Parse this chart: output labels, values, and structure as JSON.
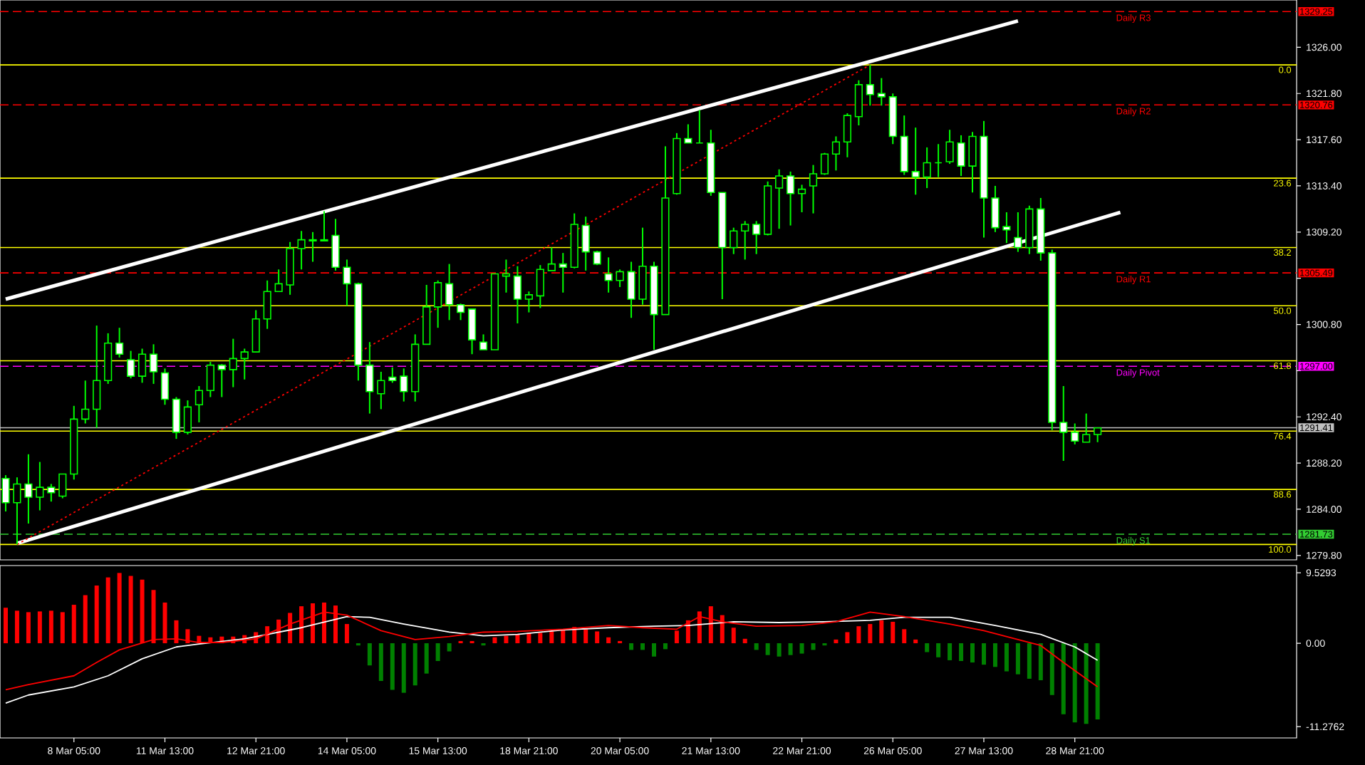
{
  "chart_data": [
    {
      "type": "candlestick",
      "color": "#00ff00",
      "categories": [
        null,
        null,
        null,
        null,
        null,
        null,
        null,
        null,
        null,
        null,
        null,
        null,
        null,
        null,
        null,
        null,
        null,
        null,
        null,
        null,
        null,
        null,
        null,
        null,
        null,
        null,
        null,
        null,
        null,
        null,
        null,
        null,
        null,
        null,
        null,
        null,
        null,
        null,
        null,
        null,
        null,
        null,
        null,
        null,
        null,
        null,
        null,
        null,
        null,
        null,
        null,
        null,
        null,
        null,
        null,
        null,
        null,
        null,
        null,
        null,
        null,
        null,
        null,
        null,
        null,
        null,
        null,
        null,
        null,
        null,
        null,
        null,
        null,
        null,
        null,
        null,
        null,
        null,
        null,
        null,
        null,
        null,
        null,
        null,
        null,
        null,
        null,
        null,
        null,
        null,
        null,
        null,
        null,
        null,
        null,
        null,
        null,
        null,
        null,
        null,
        null,
        null,
        null,
        null,
        null,
        null,
        null,
        null,
        null,
        null,
        null,
        null,
        null,
        null
      ],
      "ohlc": [
        [
          1286.8,
          1287.1,
          1283.8,
          1284.6
        ],
        [
          1284.6,
          1286.9,
          1280.8,
          1286.3
        ],
        [
          1286.3,
          1289.0,
          1282.7,
          1285.1
        ],
        [
          1285.1,
          1288.3,
          1283.9,
          1286.0
        ],
        [
          1286.0,
          1286.3,
          1284.7,
          1285.5
        ],
        [
          1285.2,
          1287.2,
          1285.0,
          1287.2
        ],
        [
          1287.2,
          1293.4,
          1286.7,
          1292.2
        ],
        [
          1292.2,
          1295.7,
          1291.8,
          1293.1
        ],
        [
          1293.1,
          1300.7,
          1291.4,
          1295.7
        ],
        [
          1295.7,
          1300.0,
          1295.4,
          1299.1
        ],
        [
          1299.1,
          1300.5,
          1297.8,
          1298.1
        ],
        [
          1297.6,
          1298.4,
          1295.9,
          1296.1
        ],
        [
          1296.1,
          1298.6,
          1295.5,
          1298.1
        ],
        [
          1298.1,
          1299.0,
          1295.4,
          1296.5
        ],
        [
          1296.4,
          1296.8,
          1293.5,
          1294.0
        ],
        [
          1294.0,
          1294.2,
          1290.4,
          1291.0
        ],
        [
          1291.0,
          1293.9,
          1290.8,
          1293.3
        ],
        [
          1293.5,
          1295.2,
          1291.9,
          1294.8
        ],
        [
          1294.8,
          1297.4,
          1294.2,
          1297.1
        ],
        [
          1297.1,
          1297.2,
          1294.2,
          1296.7
        ],
        [
          1296.7,
          1299.5,
          1295.1,
          1297.7
        ],
        [
          1297.7,
          1298.6,
          1295.8,
          1298.3
        ],
        [
          1298.3,
          1302.1,
          1298.3,
          1301.3
        ],
        [
          1301.3,
          1304.8,
          1300.4,
          1303.8
        ],
        [
          1303.8,
          1305.8,
          1303.8,
          1304.5
        ],
        [
          1304.4,
          1308.3,
          1303.5,
          1307.7
        ],
        [
          1307.7,
          1309.3,
          1305.8,
          1308.5
        ],
        [
          1308.4,
          1309.2,
          1306.5,
          1308.5
        ],
        [
          1308.4,
          1311.1,
          1308.4,
          1308.5
        ],
        [
          1308.9,
          1310.4,
          1305.7,
          1306.0
        ],
        [
          1306.0,
          1306.7,
          1302.5,
          1304.5
        ],
        [
          1304.5,
          1304.6,
          1295.7,
          1297.1
        ],
        [
          1297.1,
          1299.2,
          1292.7,
          1294.7
        ],
        [
          1294.5,
          1296.5,
          1293.1,
          1295.7
        ],
        [
          1296.0,
          1296.9,
          1295.5,
          1295.7
        ],
        [
          1296.1,
          1296.8,
          1293.8,
          1294.7
        ],
        [
          1294.7,
          1299.9,
          1293.8,
          1299.0
        ],
        [
          1299.0,
          1304.4,
          1299.0,
          1302.4
        ],
        [
          1302.4,
          1304.8,
          1300.5,
          1304.6
        ],
        [
          1304.5,
          1306.3,
          1301.2,
          1302.6
        ],
        [
          1302.6,
          1302.7,
          1301.2,
          1301.9
        ],
        [
          1302.2,
          1302.2,
          1298.1,
          1299.4
        ],
        [
          1299.2,
          1299.9,
          1298.5,
          1298.5
        ],
        [
          1298.5,
          1305.4,
          1298.5,
          1305.4
        ],
        [
          1305.2,
          1306.7,
          1303.7,
          1305.4
        ],
        [
          1305.2,
          1306.1,
          1300.9,
          1303.1
        ],
        [
          1303.1,
          1303.8,
          1301.9,
          1303.5
        ],
        [
          1303.4,
          1306.2,
          1302.3,
          1305.8
        ],
        [
          1305.7,
          1307.8,
          1305.7,
          1306.3
        ],
        [
          1306.3,
          1307.3,
          1303.7,
          1306.0
        ],
        [
          1306.0,
          1310.9,
          1305.9,
          1309.9
        ],
        [
          1309.8,
          1310.6,
          1305.7,
          1307.4
        ],
        [
          1307.4,
          1307.5,
          1306.2,
          1306.3
        ],
        [
          1305.4,
          1306.9,
          1303.7,
          1304.8
        ],
        [
          1304.8,
          1305.8,
          1304.2,
          1305.6
        ],
        [
          1305.6,
          1306.5,
          1301.4,
          1303.1
        ],
        [
          1303.1,
          1309.6,
          1302.6,
          1306.1
        ],
        [
          1306.1,
          1306.5,
          1298.5,
          1301.7
        ],
        [
          1301.7,
          1317.0,
          1301.7,
          1312.3
        ],
        [
          1312.7,
          1318.2,
          1312.6,
          1317.7
        ],
        [
          1317.7,
          1319.0,
          1317.3,
          1317.3
        ],
        [
          1317.3,
          1320.3,
          1317.3,
          1317.3
        ],
        [
          1317.3,
          1318.5,
          1312.5,
          1312.8
        ],
        [
          1312.8,
          1312.8,
          1303.1,
          1307.8
        ],
        [
          1307.8,
          1309.6,
          1307.2,
          1309.3
        ],
        [
          1309.3,
          1310.2,
          1306.7,
          1309.9
        ],
        [
          1309.9,
          1310.2,
          1307.2,
          1309.0
        ],
        [
          1309.0,
          1313.8,
          1308.9,
          1313.4
        ],
        [
          1313.2,
          1314.9,
          1309.5,
          1314.3
        ],
        [
          1314.3,
          1314.7,
          1309.8,
          1312.7
        ],
        [
          1312.7,
          1313.5,
          1311.0,
          1313.1
        ],
        [
          1313.4,
          1315.3,
          1310.9,
          1314.5
        ],
        [
          1314.5,
          1316.4,
          1314.4,
          1316.3
        ],
        [
          1316.3,
          1317.9,
          1314.8,
          1317.4
        ],
        [
          1317.4,
          1320.0,
          1316.0,
          1319.8
        ],
        [
          1319.7,
          1323.0,
          1318.9,
          1322.6
        ],
        [
          1322.6,
          1324.4,
          1320.7,
          1321.7
        ],
        [
          1321.8,
          1323.2,
          1320.7,
          1321.5
        ],
        [
          1321.5,
          1321.8,
          1317.2,
          1317.9
        ],
        [
          1317.9,
          1319.8,
          1314.4,
          1314.7
        ],
        [
          1314.7,
          1318.7,
          1312.6,
          1314.2
        ],
        [
          1314.2,
          1316.9,
          1313.2,
          1315.5
        ],
        [
          1315.5,
          1317.2,
          1314.2,
          1315.5
        ],
        [
          1315.6,
          1318.5,
          1315.4,
          1317.4
        ],
        [
          1317.3,
          1318.0,
          1314.3,
          1315.2
        ],
        [
          1315.2,
          1318.3,
          1312.8,
          1317.9
        ],
        [
          1317.9,
          1319.3,
          1308.7,
          1312.3
        ],
        [
          1312.3,
          1313.4,
          1309.2,
          1309.6
        ],
        [
          1309.7,
          1311.0,
          1308.2,
          1309.4
        ],
        [
          1308.7,
          1311.0,
          1307.4,
          1307.8
        ],
        [
          1307.8,
          1311.6,
          1307.2,
          1311.3
        ],
        [
          1311.3,
          1312.3,
          1306.6,
          1307.3
        ],
        [
          1307.3,
          1307.6,
          1291.2,
          1291.9
        ],
        [
          1291.9,
          1295.2,
          1288.4,
          1291.0
        ],
        [
          1291.0,
          1291.8,
          1289.9,
          1290.2
        ],
        [
          1290.1,
          1292.7,
          1290.1,
          1290.8
        ],
        [
          1290.8,
          1291.4,
          1290.1,
          1291.4
        ],
        null,
        null,
        null,
        null,
        null,
        null,
        null,
        null,
        null,
        null,
        null,
        null,
        null,
        null,
        null,
        null,
        null
      ],
      "series": [
        {
          "type": "line",
          "color": "#ffffff",
          "line_style": "solid",
          "values": [
            1303.1,
            null,
            null,
            null,
            null,
            null,
            null,
            null,
            null,
            null,
            null,
            null,
            null,
            null,
            null,
            null,
            null,
            null,
            null,
            null,
            null,
            null,
            null,
            null,
            null,
            null,
            null,
            null,
            null,
            null,
            null,
            null,
            null,
            null,
            null,
            null,
            null,
            null,
            null,
            null,
            null,
            null,
            null,
            null,
            null,
            null,
            null,
            null,
            null,
            null,
            null,
            null,
            null,
            null,
            null,
            null,
            null,
            null,
            null,
            null,
            null,
            null,
            null,
            null,
            null,
            null,
            null,
            null,
            null,
            null,
            null,
            null,
            null,
            null,
            null,
            null,
            null,
            null,
            null,
            null,
            null,
            null,
            null,
            null,
            null,
            null,
            null,
            null,
            null,
            1328.4,
            null,
            null,
            null,
            null,
            null,
            null,
            null,
            null,
            null,
            null,
            null,
            null,
            null,
            null,
            null,
            null,
            null,
            null,
            null,
            null,
            null,
            null,
            null,
            null
          ]
        },
        {
          "type": "line",
          "color": "#ffffff",
          "line_style": "solid",
          "values": [
            null,
            1280.9,
            null,
            null,
            null,
            null,
            null,
            null,
            null,
            null,
            null,
            null,
            null,
            null,
            null,
            null,
            null,
            null,
            null,
            null,
            null,
            null,
            null,
            null,
            null,
            null,
            null,
            null,
            null,
            null,
            null,
            null,
            null,
            null,
            null,
            null,
            null,
            null,
            null,
            null,
            null,
            null,
            null,
            null,
            null,
            null,
            null,
            null,
            null,
            null,
            null,
            null,
            null,
            null,
            null,
            null,
            null,
            null,
            null,
            null,
            null,
            null,
            null,
            null,
            null,
            null,
            null,
            null,
            null,
            null,
            null,
            null,
            null,
            null,
            null,
            null,
            null,
            null,
            null,
            null,
            null,
            null,
            null,
            null,
            null,
            null,
            null,
            null,
            null,
            null,
            null,
            null,
            null,
            null,
            null,
            null,
            null,
            null,
            1311.0,
            null,
            null,
            null,
            null,
            null,
            null,
            null,
            null,
            null,
            null,
            null,
            null,
            null,
            null,
            null
          ]
        },
        {
          "type": "line",
          "color": "#ff0000",
          "line_style": "dotted",
          "values": [
            null,
            1280.8,
            null,
            null,
            null,
            null,
            null,
            null,
            null,
            null,
            null,
            null,
            null,
            null,
            null,
            null,
            null,
            null,
            null,
            null,
            null,
            null,
            null,
            null,
            null,
            null,
            null,
            null,
            null,
            null,
            null,
            null,
            null,
            null,
            null,
            null,
            null,
            null,
            null,
            null,
            null,
            null,
            null,
            null,
            null,
            null,
            null,
            null,
            null,
            null,
            null,
            null,
            null,
            null,
            null,
            null,
            null,
            null,
            null,
            null,
            null,
            null,
            null,
            null,
            null,
            null,
            null,
            null,
            null,
            null,
            null,
            null,
            null,
            null,
            null,
            null,
            1324.4,
            null,
            null,
            null,
            null,
            null,
            null,
            null,
            null,
            null,
            null,
            null,
            null,
            null,
            null,
            null,
            null,
            null,
            null,
            null,
            null,
            null,
            null,
            null,
            null,
            null,
            null,
            null,
            null,
            null,
            null,
            null,
            null,
            null,
            null,
            null,
            null,
            null
          ]
        }
      ],
      "ylim": [
        1279.4,
        1330.3
      ],
      "yticks": [
        {
          "value": 1326.0,
          "label": "1326.00"
        },
        {
          "value": 1321.8,
          "label": "1321.80"
        },
        {
          "value": 1317.6,
          "label": "1317.60"
        },
        {
          "value": 1313.4,
          "label": "1313.40"
        },
        {
          "value": 1309.2,
          "label": "1309.20"
        },
        {
          "value": 1305.0,
          "label": null
        },
        {
          "value": 1300.8,
          "label": "1300.80"
        },
        {
          "value": 1296.6,
          "label": null
        },
        {
          "value": 1292.4,
          "label": "1292.40"
        },
        {
          "value": 1288.2,
          "label": "1288.20"
        },
        {
          "value": 1284.0,
          "label": "1284.00"
        },
        {
          "value": 1279.8,
          "label": "1279.80"
        }
      ],
      "tick_labels": "y",
      "ref_lines": [
        {
          "axis": "y",
          "value": 1324.4,
          "color": "#ffff00",
          "line_style": "solid"
        },
        {
          "axis": "y",
          "value": 1314.1,
          "color": "#ffff00",
          "line_style": "solid"
        },
        {
          "axis": "y",
          "value": 1307.8,
          "color": "#ffff00",
          "line_style": "solid"
        },
        {
          "axis": "y",
          "value": 1302.5,
          "color": "#ffff00",
          "line_style": "solid"
        },
        {
          "axis": "y",
          "value": 1297.5,
          "color": "#ffff00",
          "line_style": "solid"
        },
        {
          "axis": "y",
          "value": 1291.1,
          "color": "#ffff00",
          "line_style": "solid"
        },
        {
          "axis": "y",
          "value": 1285.8,
          "color": "#ffff00",
          "line_style": "solid"
        },
        {
          "axis": "y",
          "value": 1280.8,
          "color": "#ffff00",
          "line_style": "solid"
        },
        {
          "axis": "y",
          "value": 1329.25,
          "label": "1329.25",
          "color": "#ff0000",
          "line_style": "dashed"
        },
        {
          "axis": "y",
          "value": 1320.76,
          "label": "1320.76",
          "color": "#ff0000",
          "line_style": "dashed"
        },
        {
          "axis": "y",
          "value": 1305.49,
          "label": "1305.49",
          "color": "#ff0000",
          "line_style": "dashed"
        },
        {
          "axis": "y",
          "value": 1297.0,
          "label": "1297.00",
          "color": "#ff00ff",
          "line_style": "dashed"
        },
        {
          "axis": "y",
          "value": 1281.73,
          "label": "1281.73",
          "color": "#32cd32",
          "line_style": "dashed"
        },
        {
          "axis": "y",
          "value": 1291.41,
          "label": "1291.41",
          "color": "#c0c0c0",
          "line_style": "solid"
        }
      ],
      "annotations": [
        "0.0",
        "23.6",
        "38.2",
        "50.0",
        "61.8",
        "76.4",
        "88.6",
        "100.0",
        "Daily R3",
        "Daily R2",
        "Daily R1",
        "Daily Pivot",
        "Daily S1"
      ]
    },
    {
      "type": "bar",
      "categories": [
        null,
        null,
        null,
        null,
        null,
        null,
        "8 Mar 05:00",
        null,
        null,
        null,
        null,
        null,
        null,
        null,
        "11 Mar 13:00",
        null,
        null,
        null,
        null,
        null,
        null,
        null,
        "12 Mar 21:00",
        null,
        null,
        null,
        null,
        null,
        null,
        null,
        "14 Mar 05:00",
        null,
        null,
        null,
        null,
        null,
        null,
        null,
        "15 Mar 13:00",
        null,
        null,
        null,
        null,
        null,
        null,
        null,
        "18 Mar 21:00",
        null,
        null,
        null,
        null,
        null,
        null,
        null,
        "20 Mar 05:00",
        null,
        null,
        null,
        null,
        null,
        null,
        null,
        "21 Mar 13:00",
        null,
        null,
        null,
        null,
        null,
        null,
        null,
        "22 Mar 21:00",
        null,
        null,
        null,
        null,
        null,
        null,
        null,
        "26 Mar 05:00",
        null,
        null,
        null,
        null,
        null,
        null,
        null,
        "27 Mar 13:00",
        null,
        null,
        null,
        null,
        null,
        null,
        null,
        "28 Mar 21:00",
        null,
        null,
        null,
        null,
        null,
        null,
        null,
        null,
        null,
        null,
        null,
        null,
        null,
        null,
        null,
        null,
        null,
        null,
        null
      ],
      "series": [
        {
          "type": "bar",
          "values": [
            4.8,
            4.4,
            4.2,
            4.3,
            4.4,
            4.2,
            5.2,
            6.5,
            7.8,
            8.9,
            9.5,
            9.1,
            8.6,
            7.2,
            5.5,
            3.1,
            1.9,
            1.0,
            0.8,
            0.9,
            0.9,
            1.1,
            1.5,
            2.3,
            3.2,
            4.1,
            5.0,
            5.4,
            5.5,
            5.1,
            2.6,
            -0.3,
            -3.0,
            -5.1,
            -6.3,
            -6.7,
            -5.7,
            -4.1,
            -2.4,
            -1.1,
            0.3,
            0.3,
            -0.3,
            0.8,
            1.0,
            1.2,
            1.4,
            1.4,
            1.6,
            1.8,
            2.2,
            1.9,
            1.6,
            0.8,
            0.3,
            -0.9,
            -0.9,
            -1.8,
            -0.8,
            1.7,
            3.1,
            4.3,
            5.0,
            3.8,
            2.1,
            0.6,
            -0.9,
            -1.6,
            -1.8,
            -1.6,
            -1.4,
            -0.9,
            -0.3,
            0.5,
            1.5,
            2.3,
            2.6,
            3.1,
            2.9,
            1.9,
            0.5,
            -1.2,
            -1.9,
            -2.3,
            -2.4,
            -2.6,
            -2.9,
            -3.2,
            -3.8,
            -4.2,
            -4.8,
            -5.0,
            -7.0,
            -9.6,
            -10.7,
            -10.9,
            -10.3,
            null,
            null,
            null,
            null,
            null,
            null,
            null,
            null,
            null,
            null,
            null,
            null,
            null,
            null,
            null,
            null,
            null
          ],
          "colors": [
            "#ff0000",
            "#ff0000",
            "#ff0000",
            "#ff0000",
            "#ff0000",
            "#ff0000",
            "#ff0000",
            "#ff0000",
            "#ff0000",
            "#ff0000",
            "#ff0000",
            "#ff0000",
            "#ff0000",
            "#ff0000",
            "#ff0000",
            "#ff0000",
            "#ff0000",
            "#ff0000",
            "#ff0000",
            "#ff0000",
            "#ff0000",
            "#ff0000",
            "#ff0000",
            "#ff0000",
            "#ff0000",
            "#ff0000",
            "#ff0000",
            "#ff0000",
            "#ff0000",
            "#ff0000",
            "#ff0000",
            "#008000",
            "#008000",
            "#008000",
            "#008000",
            "#008000",
            "#008000",
            "#008000",
            "#008000",
            "#008000",
            "#ff0000",
            "#ff0000",
            "#008000",
            "#ff0000",
            "#ff0000",
            "#ff0000",
            "#ff0000",
            "#ff0000",
            "#ff0000",
            "#ff0000",
            "#ff0000",
            "#ff0000",
            "#ff0000",
            "#ff0000",
            "#ff0000",
            "#008000",
            "#008000",
            "#008000",
            "#008000",
            "#ff0000",
            "#ff0000",
            "#ff0000",
            "#ff0000",
            "#ff0000",
            "#ff0000",
            "#ff0000",
            "#008000",
            "#008000",
            "#008000",
            "#008000",
            "#008000",
            "#008000",
            "#008000",
            "#ff0000",
            "#ff0000",
            "#ff0000",
            "#ff0000",
            "#ff0000",
            "#ff0000",
            "#ff0000",
            "#ff0000",
            "#008000",
            "#008000",
            "#008000",
            "#008000",
            "#008000",
            "#008000",
            "#008000",
            "#008000",
            "#008000",
            "#008000",
            "#008000",
            "#008000",
            "#008000",
            "#008000",
            "#008000",
            "#008000",
            null,
            null,
            null,
            null,
            null,
            null,
            null,
            null,
            null,
            null,
            null,
            null,
            null,
            null,
            null,
            null,
            null
          ]
        },
        {
          "type": "line",
          "color": "#ffffff",
          "values": [
            -8.1,
            null,
            -7.0,
            null,
            null,
            null,
            -5.9,
            null,
            null,
            -4.4,
            null,
            null,
            -2.1,
            null,
            null,
            -0.5,
            null,
            -0.1,
            null,
            null,
            null,
            0.6,
            null,
            null,
            null,
            null,
            2.1,
            null,
            null,
            null,
            3.6,
            null,
            3.5,
            null,
            null,
            2.6,
            null,
            null,
            null,
            1.5,
            null,
            null,
            1.0,
            null,
            null,
            1.2,
            null,
            null,
            null,
            1.8,
            null,
            null,
            null,
            2.1,
            null,
            null,
            null,
            2.3,
            null,
            null,
            2.4,
            null,
            null,
            null,
            2.9,
            null,
            null,
            null,
            2.8,
            null,
            null,
            null,
            2.9,
            null,
            null,
            null,
            3.1,
            null,
            null,
            3.5,
            null,
            null,
            null,
            3.5,
            null,
            null,
            null,
            2.4,
            null,
            null,
            null,
            1.2,
            null,
            null,
            -0.5,
            null,
            -2.3,
            null,
            null,
            null,
            null,
            null,
            null,
            null,
            null,
            null,
            null,
            null,
            null,
            null,
            null,
            null,
            null,
            null
          ]
        },
        {
          "type": "line",
          "color": "#ff0000",
          "values": [
            -6.3,
            null,
            -5.6,
            null,
            null,
            null,
            -4.4,
            null,
            -2.6,
            null,
            -0.9,
            null,
            null,
            0.5,
            null,
            0.6,
            null,
            0.1,
            null,
            0.1,
            null,
            null,
            0.6,
            null,
            null,
            2.6,
            null,
            null,
            4.2,
            null,
            3.8,
            null,
            null,
            1.7,
            null,
            null,
            0.5,
            null,
            null,
            0.9,
            null,
            null,
            1.5,
            null,
            null,
            1.6,
            null,
            null,
            null,
            1.9,
            null,
            null,
            null,
            2.4,
            null,
            null,
            2.1,
            null,
            null,
            1.9,
            null,
            3.6,
            null,
            2.9,
            null,
            null,
            2.3,
            null,
            null,
            null,
            2.4,
            null,
            null,
            2.9,
            null,
            null,
            4.2,
            null,
            null,
            3.6,
            null,
            null,
            null,
            2.6,
            null,
            null,
            1.7,
            null,
            null,
            0.5,
            null,
            -0.3,
            null,
            -2.6,
            null,
            null,
            -5.9,
            null,
            null,
            null,
            null,
            null,
            null,
            null,
            null,
            null,
            null,
            null,
            null,
            null,
            null,
            null,
            null,
            null
          ]
        }
      ],
      "ylim": [
        -12.8,
        10.5
      ],
      "yticks": [
        {
          "value": 9.5293,
          "label": "9.5293"
        },
        {
          "value": 0,
          "label": "0.00"
        },
        {
          "value": -11.2762,
          "label": "-11.2762"
        }
      ]
    }
  ]
}
